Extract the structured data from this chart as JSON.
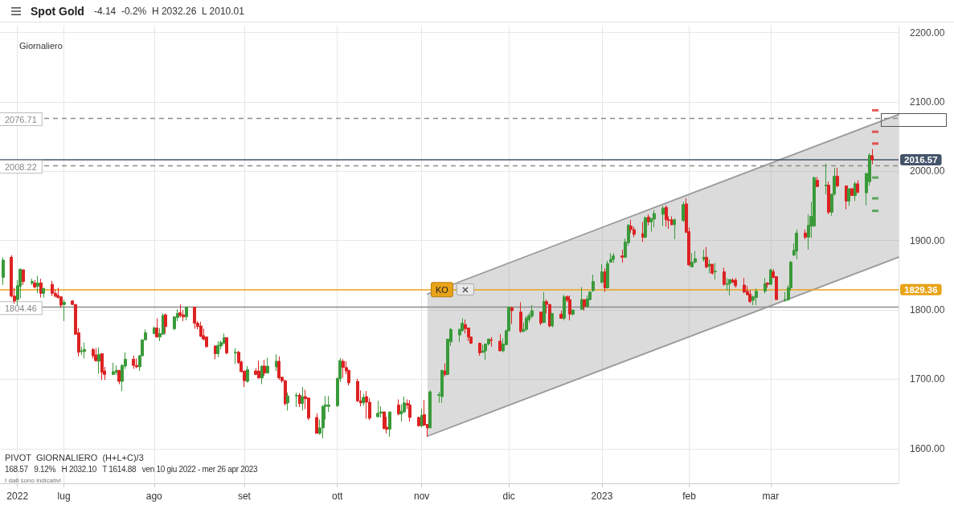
{
  "chart_data": {
    "type": "candlestick",
    "title": "Spot Gold",
    "subtitle": "-4.14  -0.2%  H 2032.26  L 2010.01",
    "annotations": [
      "Giornaliero",
      {
        "text": "KO",
        "x": "2022-11-08",
        "y": 1829.36
      },
      "PIVOT  GIORNALIERO  (H+L+C)/3",
      "168.57   9.12%   H 2032.10   T 1614.88   ven 10 giu 2022 - mer 26 apr 2023",
      "I dati sono indicativi"
    ],
    "colors": [
      "#3a9a3a",
      "#dd2222",
      "#dd2222",
      "#3a9a3a",
      "#3a9a3a",
      "#dd2222",
      "#3a9a3a",
      "#dd2222",
      "#3a9a3a",
      "#dd2222",
      "#3a9a3a",
      "#dd2222",
      "#dd2222",
      "#dd2222",
      "#dd2222",
      "#3a9a3a",
      "#dd2222",
      "#dd2222",
      "#dd2222",
      "#3a9a3a",
      "#3a9a3a",
      "#dd2222",
      "#dd2222",
      "#3a9a3a",
      "#dd2222",
      "#dd2222",
      "#3a9a3a",
      "#3a9a3a",
      "#dd2222",
      "#3a9a3a",
      "#3a9a3a",
      "#dd2222",
      "#dd2222",
      "#3a9a3a",
      "#3a9a3a",
      "#3a9a3a",
      "#3a9a3a",
      "#dd2222",
      "#3a9a3a",
      "#3a9a3a",
      "#dd2222",
      "#3a9a3a",
      "#3a9a3a",
      "#dd2222",
      "#dd2222",
      "#3a9a3a",
      "#dd2222",
      "#dd2222",
      "#dd2222",
      "#dd2222",
      "#dd2222",
      "#dd2222",
      "#3a9a3a",
      "#3a9a3a",
      "#3a9a3a",
      "#dd2222",
      "#3a9a3a",
      "#dd2222",
      "#dd2222",
      "#dd2222",
      "#3a9a3a",
      "#dd2222",
      "#dd2222",
      "#3a9a3a",
      "#dd2222",
      "#3a9a3a",
      "#3a9a3a",
      "#dd2222",
      "#dd2222",
      "#dd2222",
      "#3a9a3a",
      "#3a9a3a",
      "#dd2222",
      "#3a9a3a",
      "#dd2222",
      "#dd2222",
      "#dd2222",
      "#3a9a3a",
      "#3a9a3a",
      "#3a9a3a",
      "#3a9a3a",
      "#3a9a3a",
      "#3a9a3a",
      "#dd2222",
      "#dd2222",
      "#dd2222",
      "#dd2222",
      "#dd2222",
      "#3a9a3a",
      "#dd2222",
      "#dd2222",
      "#3a9a3a",
      "#3a9a3a",
      "#dd2222",
      "#dd2222",
      "#3a9a3a",
      "#dd2222",
      "#3a9a3a",
      "#3a9a3a",
      "#dd2222",
      "#dd2222",
      "#dd2222",
      "#3a9a3a",
      "#dd2222",
      "#dd2222",
      "#3a9a3a",
      "#3a9a3a",
      "#3a9a3a",
      "#dd2222",
      "#3a9a3a",
      "#3a9a3a",
      "#3a9a3a",
      "#3a9a3a",
      "#dd2222",
      "#dd2222",
      "#dd2222",
      "#dd2222",
      "#3a9a3a",
      "#3a9a3a",
      "#3a9a3a",
      "#dd2222",
      "#dd2222",
      "#3a9a3a",
      "#3a9a3a",
      "#3a9a3a",
      "#dd2222",
      "#dd2222",
      "#3a9a3a",
      "#3a9a3a",
      "#3a9a3a",
      "#3a9a3a",
      "#dd2222",
      "#3a9a3a",
      "#dd2222",
      "#dd2222",
      "#3a9a3a",
      "#dd2222",
      "#3a9a3a",
      "#dd2222",
      "#dd2222",
      "#3a9a3a",
      "#3a9a3a",
      "#dd2222",
      "#3a9a3a",
      "#3a9a3a",
      "#3a9a3a",
      "#3a9a3a",
      "#dd2222",
      "#3a9a3a",
      "#3a9a3a",
      "#3a9a3a",
      "#dd2222",
      "#3a9a3a",
      "#3a9a3a",
      "#dd2222",
      "#dd2222",
      "#dd2222",
      "#3a9a3a",
      "#dd2222",
      "#3a9a3a",
      "#3a9a3a",
      "#3a9a3a",
      "#dd2222",
      "#dd2222",
      "#dd2222",
      "#3a9a3a",
      "#3a9a3a",
      "#dd2222",
      "#dd2222",
      "#3a9a3a",
      "#3a9a3a",
      "#3a9a3a",
      "#dd2222",
      "#3a9a3a",
      "#dd2222",
      "#3a9a3a",
      "#dd2222",
      "#3a9a3a",
      "#3a9a3a",
      "#dd2222",
      "#dd2222",
      "#dd2222",
      "#dd2222",
      "#dd2222",
      "#3a9a3a",
      "#3a9a3a",
      "#3a9a3a",
      "#dd2222",
      "#3a9a3a",
      "#dd2222",
      "#dd2222",
      "#3a9a3a",
      "#3a9a3a",
      "#3a9a3a",
      "#3a9a3a",
      "#3a9a3a",
      "#dd2222",
      "#3a9a3a",
      "#3a9a3a",
      "#3a9a3a",
      "#dd2222",
      "#3a9a3a",
      "#dd2222",
      "#3a9a3a",
      "#3a9a3a",
      "#dd2222",
      "#dd2222",
      "#3a9a3a",
      "#dd2222",
      "#3a9a3a",
      "#dd2222",
      "#3a9a3a",
      "#3a9a3a",
      "#dd2222"
    ],
    "grid": true,
    "xlim": [
      "2022-06-09",
      "2023-04-14"
    ],
    "xticks": [
      {
        "value": "2022-06-15",
        "label": "2022"
      },
      {
        "value": "2022-07-01",
        "label": "lug"
      },
      {
        "value": "2022-08-01",
        "label": "ago"
      },
      {
        "value": "2022-09-01",
        "label": "set"
      },
      {
        "value": "2022-10-03",
        "label": "ott"
      },
      {
        "value": "2022-11-01",
        "label": "nov"
      },
      {
        "value": "2022-12-01",
        "label": "dic"
      },
      {
        "value": "2023-01-02",
        "label": "2023"
      },
      {
        "value": "2023-02-01",
        "label": "feb"
      },
      {
        "value": "2023-03-01",
        "label": "mar"
      }
    ],
    "ylim": [
      1550,
      2210
    ],
    "yticks": [
      {
        "value": 1600,
        "label": "1600.00"
      },
      {
        "value": 1700,
        "label": "1700.00"
      },
      {
        "value": 1800,
        "label": "1800.00"
      },
      {
        "value": 1900,
        "label": "1900.00"
      },
      {
        "value": 2000,
        "label": "2000.00"
      },
      {
        "value": 2100,
        "label": "2100.00"
      },
      {
        "value": 2200,
        "label": "2200.00"
      }
    ],
    "ref_lines": [
      {
        "axis": "y",
        "value": 2076.71,
        "label": "2076.71",
        "line_style": "dashed"
      },
      {
        "axis": "y",
        "value": 2008.22,
        "label": "2008.22",
        "line_style": "dashed"
      },
      {
        "axis": "y",
        "value": 1804.46,
        "label": "1804.46"
      },
      {
        "axis": "y",
        "value": 1829.36,
        "label": "1829.36",
        "color": "#e8a317"
      },
      {
        "axis": "y",
        "value": 2016.57,
        "label": "2016.57",
        "color": "#44546a"
      }
    ],
    "x": [
      "2022-06-10",
      "2022-06-13",
      "2022-06-14",
      "2022-06-15",
      "2022-06-16",
      "2022-06-17",
      "2022-06-20",
      "2022-06-21",
      "2022-06-22",
      "2022-06-23",
      "2022-06-24",
      "2022-06-27",
      "2022-06-28",
      "2022-06-29",
      "2022-06-30",
      "2022-07-01",
      "2022-07-04",
      "2022-07-05",
      "2022-07-06",
      "2022-07-07",
      "2022-07-08",
      "2022-07-11",
      "2022-07-12",
      "2022-07-13",
      "2022-07-14",
      "2022-07-15",
      "2022-07-18",
      "2022-07-19",
      "2022-07-20",
      "2022-07-21",
      "2022-07-22",
      "2022-07-25",
      "2022-07-26",
      "2022-07-27",
      "2022-07-28",
      "2022-07-29",
      "2022-08-01",
      "2022-08-02",
      "2022-08-03",
      "2022-08-04",
      "2022-08-05",
      "2022-08-08",
      "2022-08-09",
      "2022-08-10",
      "2022-08-11",
      "2022-08-12",
      "2022-08-15",
      "2022-08-16",
      "2022-08-17",
      "2022-08-18",
      "2022-08-19",
      "2022-08-22",
      "2022-08-23",
      "2022-08-24",
      "2022-08-25",
      "2022-08-26",
      "2022-08-29",
      "2022-08-30",
      "2022-08-31",
      "2022-09-01",
      "2022-09-02",
      "2022-09-05",
      "2022-09-06",
      "2022-09-07",
      "2022-09-08",
      "2022-09-09",
      "2022-09-12",
      "2022-09-13",
      "2022-09-14",
      "2022-09-15",
      "2022-09-16",
      "2022-09-19",
      "2022-09-20",
      "2022-09-21",
      "2022-09-22",
      "2022-09-23",
      "2022-09-26",
      "2022-09-27",
      "2022-09-28",
      "2022-09-29",
      "2022-09-30",
      "2022-10-03",
      "2022-10-04",
      "2022-10-05",
      "2022-10-06",
      "2022-10-07",
      "2022-10-10",
      "2022-10-11",
      "2022-10-12",
      "2022-10-13",
      "2022-10-14",
      "2022-10-17",
      "2022-10-18",
      "2022-10-19",
      "2022-10-20",
      "2022-10-21",
      "2022-10-24",
      "2022-10-25",
      "2022-10-26",
      "2022-10-27",
      "2022-10-28",
      "2022-10-31",
      "2022-11-01",
      "2022-11-02",
      "2022-11-03",
      "2022-11-04",
      "2022-11-07",
      "2022-11-08",
      "2022-11-09",
      "2022-11-10",
      "2022-11-11",
      "2022-11-14",
      "2022-11-15",
      "2022-11-16",
      "2022-11-17",
      "2022-11-18",
      "2022-11-21",
      "2022-11-22",
      "2022-11-23",
      "2022-11-24",
      "2022-11-25",
      "2022-11-28",
      "2022-11-29",
      "2022-11-30",
      "2022-12-01",
      "2022-12-02",
      "2022-12-05",
      "2022-12-06",
      "2022-12-07",
      "2022-12-08",
      "2022-12-09",
      "2022-12-12",
      "2022-12-13",
      "2022-12-14",
      "2022-12-15",
      "2022-12-16",
      "2022-12-19",
      "2022-12-20",
      "2022-12-21",
      "2022-12-22",
      "2022-12-23",
      "2022-12-26",
      "2022-12-27",
      "2022-12-28",
      "2022-12-29",
      "2022-12-30",
      "2023-01-02",
      "2023-01-03",
      "2023-01-04",
      "2023-01-05",
      "2023-01-06",
      "2023-01-09",
      "2023-01-10",
      "2023-01-11",
      "2023-01-12",
      "2023-01-13",
      "2023-01-16",
      "2023-01-17",
      "2023-01-18",
      "2023-01-19",
      "2023-01-20",
      "2023-01-23",
      "2023-01-24",
      "2023-01-25",
      "2023-01-26",
      "2023-01-27",
      "2023-01-30",
      "2023-01-31",
      "2023-02-01",
      "2023-02-02",
      "2023-02-03",
      "2023-02-06",
      "2023-02-07",
      "2023-02-08",
      "2023-02-09",
      "2023-02-10",
      "2023-02-13",
      "2023-02-14",
      "2023-02-15",
      "2023-02-16",
      "2023-02-17",
      "2023-02-20",
      "2023-02-21",
      "2023-02-22",
      "2023-02-23",
      "2023-02-24",
      "2023-02-27",
      "2023-02-28",
      "2023-03-01",
      "2023-03-02",
      "2023-03-03",
      "2023-03-06",
      "2023-03-07",
      "2023-03-08",
      "2023-03-09",
      "2023-03-10",
      "2023-03-13",
      "2023-03-14",
      "2023-03-15",
      "2023-03-16",
      "2023-03-17",
      "2023-03-20",
      "2023-03-21",
      "2023-03-22",
      "2023-03-23",
      "2023-03-24",
      "2023-03-27",
      "2023-03-28",
      "2023-03-29",
      "2023-03-30",
      "2023-03-31",
      "2023-04-03",
      "2023-04-04",
      "2023-04-05"
    ],
    "ohlc": [
      [
        1847,
        1876,
        1836,
        1872
      ],
      [
        1876,
        1879,
        1818,
        1820
      ],
      [
        1820,
        1832,
        1809,
        1813
      ],
      [
        1815,
        1843,
        1807,
        1835
      ],
      [
        1834,
        1859,
        1817,
        1859
      ],
      [
        1858,
        1858,
        1836,
        1841
      ],
      [
        1839,
        1845,
        1836,
        1841
      ],
      [
        1839,
        1843,
        1831,
        1833
      ],
      [
        1834,
        1849,
        1824,
        1839
      ],
      [
        1839,
        1845,
        1818,
        1824
      ],
      [
        1824,
        1832,
        1818,
        1831
      ],
      [
        1837,
        1842,
        1820,
        1824
      ],
      [
        1824,
        1830,
        1818,
        1820
      ],
      [
        1821,
        1832,
        1816,
        1818
      ],
      [
        1819,
        1820,
        1803,
        1807
      ],
      [
        1808,
        1815,
        1784,
        1811
      ],
      [
        1813,
        1814,
        1807,
        1808
      ],
      [
        1808,
        1808,
        1764,
        1765
      ],
      [
        1767,
        1774,
        1733,
        1739
      ],
      [
        1740,
        1747,
        1735,
        1741
      ],
      [
        1740,
        1753,
        1730,
        1743
      ],
      [
        1743,
        1745,
        1730,
        1734
      ],
      [
        1735,
        1745,
        1725,
        1727
      ],
      [
        1726,
        1746,
        1708,
        1736
      ],
      [
        1737,
        1737,
        1699,
        1710
      ],
      [
        1712,
        1718,
        1699,
        1707
      ],
      [
        1707,
        1724,
        1706,
        1711
      ],
      [
        1710,
        1720,
        1706,
        1713
      ],
      [
        1713,
        1713,
        1693,
        1697
      ],
      [
        1697,
        1722,
        1683,
        1720
      ],
      [
        1719,
        1739,
        1715,
        1729
      ],
      [
        1729,
        1734,
        1715,
        1720
      ],
      [
        1720,
        1730,
        1716,
        1718
      ],
      [
        1718,
        1735,
        1712,
        1734
      ],
      [
        1734,
        1757,
        1733,
        1757
      ],
      [
        1757,
        1772,
        1756,
        1767
      ],
      [
        1766,
        1776,
        1765,
        1774
      ],
      [
        1774,
        1788,
        1760,
        1761
      ],
      [
        1761,
        1774,
        1755,
        1766
      ],
      [
        1765,
        1795,
        1764,
        1792
      ],
      [
        1793,
        1795,
        1766,
        1776
      ],
      [
        1773,
        1791,
        1771,
        1790
      ],
      [
        1789,
        1801,
        1784,
        1795
      ],
      [
        1796,
        1808,
        1789,
        1792
      ],
      [
        1793,
        1800,
        1784,
        1790
      ],
      [
        1790,
        1805,
        1785,
        1804
      ],
      [
        1804,
        1804,
        1773,
        1781
      ],
      [
        1781,
        1784,
        1772,
        1776
      ],
      [
        1777,
        1783,
        1761,
        1762
      ],
      [
        1763,
        1773,
        1756,
        1758
      ],
      [
        1761,
        1761,
        1746,
        1747
      ],
      [
        1748,
        1749,
        1729,
        1737
      ],
      [
        1737,
        1755,
        1732,
        1749
      ],
      [
        1748,
        1756,
        1743,
        1753
      ],
      [
        1752,
        1766,
        1750,
        1760
      ],
      [
        1760,
        1760,
        1736,
        1738
      ],
      [
        1738,
        1745,
        1722,
        1739
      ],
      [
        1739,
        1741,
        1722,
        1724
      ],
      [
        1725,
        1727,
        1710,
        1711
      ],
      [
        1712,
        1712,
        1689,
        1698
      ],
      [
        1697,
        1719,
        1695,
        1714
      ],
      [
        1712,
        1716,
        1706,
        1707
      ],
      [
        1712,
        1727,
        1701,
        1702
      ],
      [
        1702,
        1720,
        1693,
        1719
      ],
      [
        1719,
        1728,
        1705,
        1709
      ],
      [
        1709,
        1731,
        1709,
        1719
      ],
      [
        1718,
        1736,
        1712,
        1726
      ],
      [
        1726,
        1733,
        1699,
        1702
      ],
      [
        1703,
        1703,
        1695,
        1698
      ],
      [
        1698,
        1699,
        1662,
        1665
      ],
      [
        1666,
        1681,
        1655,
        1676
      ],
      [
        1676,
        1681,
        1660,
        1677
      ],
      [
        1677,
        1680,
        1660,
        1665
      ],
      [
        1665,
        1689,
        1655,
        1675
      ],
      [
        1675,
        1685,
        1657,
        1672
      ],
      [
        1673,
        1673,
        1641,
        1644
      ],
      [
        1645,
        1651,
        1622,
        1622
      ],
      [
        1622,
        1642,
        1620,
        1630
      ],
      [
        1630,
        1663,
        1615,
        1661
      ],
      [
        1661,
        1676,
        1642,
        1663
      ],
      [
        1661,
        1676,
        1653,
        1663
      ],
      [
        1662,
        1703,
        1660,
        1701
      ],
      [
        1701,
        1731,
        1696,
        1727
      ],
      [
        1726,
        1729,
        1702,
        1717
      ],
      [
        1717,
        1726,
        1707,
        1712
      ],
      [
        1713,
        1713,
        1691,
        1695
      ],
      [
        1697,
        1701,
        1667,
        1669
      ],
      [
        1669,
        1684,
        1661,
        1666
      ],
      [
        1666,
        1679,
        1662,
        1674
      ],
      [
        1675,
        1683,
        1643,
        1667
      ],
      [
        1667,
        1673,
        1641,
        1644
      ],
      [
        1646,
        1669,
        1645,
        1651
      ],
      [
        1651,
        1661,
        1645,
        1653
      ],
      [
        1653,
        1653,
        1628,
        1629
      ],
      [
        1631,
        1646,
        1622,
        1628
      ],
      [
        1628,
        1653,
        1617,
        1653
      ],
      [
        1663,
        1671,
        1648,
        1650
      ],
      [
        1650,
        1664,
        1639,
        1654
      ],
      [
        1653,
        1675,
        1651,
        1666
      ],
      [
        1665,
        1671,
        1657,
        1663
      ],
      [
        1663,
        1670,
        1639,
        1645
      ],
      [
        1645,
        1646,
        1632,
        1633
      ],
      [
        1633,
        1658,
        1631,
        1648
      ],
      [
        1649,
        1670,
        1633,
        1634
      ],
      [
        1635,
        1635,
        1617,
        1630
      ],
      [
        1630,
        1684,
        1630,
        1682
      ],
      [
        1677,
        1682,
        1666,
        1678
      ],
      [
        1675,
        1713,
        1666,
        1713
      ],
      [
        1712,
        1723,
        1704,
        1707
      ],
      [
        1707,
        1758,
        1706,
        1758
      ],
      [
        1754,
        1774,
        1748,
        1772
      ],
      [
        1764,
        1773,
        1754,
        1772
      ],
      [
        1770,
        1788,
        1769,
        1781
      ],
      [
        1779,
        1786,
        1766,
        1773
      ],
      [
        1774,
        1774,
        1755,
        1761
      ],
      [
        1761,
        1761,
        1751,
        1752
      ],
      [
        1752,
        1753,
        1734,
        1738
      ],
      [
        1739,
        1750,
        1738,
        1741
      ],
      [
        1741,
        1751,
        1728,
        1751
      ],
      [
        1751,
        1759,
        1749,
        1758
      ],
      [
        1757,
        1761,
        1747,
        1756
      ],
      [
        1755,
        1765,
        1741,
        1741
      ],
      [
        1741,
        1759,
        1739,
        1751
      ],
      [
        1750,
        1772,
        1749,
        1770
      ],
      [
        1770,
        1805,
        1769,
        1804
      ],
      [
        1803,
        1805,
        1780,
        1799
      ],
      [
        1797,
        1811,
        1767,
        1769
      ],
      [
        1769,
        1782,
        1768,
        1772
      ],
      [
        1772,
        1791,
        1769,
        1788
      ],
      [
        1786,
        1796,
        1782,
        1792
      ],
      [
        1791,
        1807,
        1788,
        1799
      ],
      [
        1797,
        1797,
        1778,
        1781
      ],
      [
        1782,
        1826,
        1781,
        1812
      ],
      [
        1812,
        1815,
        1795,
        1808
      ],
      [
        1808,
        1808,
        1775,
        1777
      ],
      [
        1777,
        1795,
        1775,
        1795
      ],
      [
        1794,
        1799,
        1787,
        1788
      ],
      [
        1788,
        1822,
        1785,
        1819
      ],
      [
        1819,
        1821,
        1811,
        1814
      ],
      [
        1815,
        1821,
        1785,
        1794
      ],
      [
        1794,
        1800,
        1792,
        1800
      ],
      [
        1801,
        1833,
        1800,
        1815
      ],
      [
        1815,
        1815,
        1799,
        1805
      ],
      [
        1805,
        1821,
        1804,
        1816
      ],
      [
        1815,
        1826,
        1814,
        1826
      ],
      [
        1828,
        1851,
        1826,
        1841
      ],
      [
        1840,
        1866,
        1838,
        1855
      ],
      [
        1855,
        1860,
        1826,
        1832
      ],
      [
        1832,
        1871,
        1831,
        1867
      ],
      [
        1869,
        1882,
        1868,
        1873
      ],
      [
        1873,
        1882,
        1868,
        1878
      ],
      [
        1878,
        1887,
        1868,
        1876
      ],
      [
        1876,
        1903,
        1875,
        1898
      ],
      [
        1897,
        1924,
        1893,
        1922
      ],
      [
        1921,
        1930,
        1911,
        1916
      ],
      [
        1916,
        1920,
        1905,
        1909
      ],
      [
        1910,
        1927,
        1898,
        1905
      ],
      [
        1905,
        1935,
        1903,
        1933
      ],
      [
        1934,
        1938,
        1922,
        1927
      ],
      [
        1927,
        1932,
        1913,
        1932
      ],
      [
        1931,
        1944,
        1919,
        1939
      ],
      [
        1938,
        1950,
        1921,
        1947
      ],
      [
        1948,
        1951,
        1920,
        1930
      ],
      [
        1930,
        1935,
        1917,
        1929
      ],
      [
        1930,
        1935,
        1922,
        1923
      ],
      [
        1923,
        1932,
        1902,
        1930
      ],
      [
        1929,
        1956,
        1927,
        1952
      ],
      [
        1953,
        1961,
        1912,
        1912
      ],
      [
        1913,
        1919,
        1863,
        1865
      ],
      [
        1862,
        1882,
        1862,
        1869
      ],
      [
        1869,
        1885,
        1867,
        1874
      ],
      [
        1873,
        1887,
        1870,
        1876
      ],
      [
        1876,
        1891,
        1860,
        1862
      ],
      [
        1863,
        1873,
        1853,
        1866
      ],
      [
        1866,
        1866,
        1851,
        1853
      ],
      [
        1855,
        1868,
        1844,
        1856
      ],
      [
        1855,
        1861,
        1835,
        1837
      ],
      [
        1837,
        1846,
        1828,
        1838
      ],
      [
        1838,
        1844,
        1821,
        1844
      ],
      [
        1843,
        1846,
        1839,
        1840
      ],
      [
        1843,
        1846,
        1832,
        1835
      ],
      [
        1836,
        1846,
        1824,
        1826
      ],
      [
        1827,
        1835,
        1821,
        1822
      ],
      [
        1823,
        1829,
        1810,
        1812
      ],
      [
        1814,
        1821,
        1807,
        1819
      ],
      [
        1818,
        1831,
        1807,
        1827
      ],
      [
        1827,
        1846,
        1824,
        1838
      ],
      [
        1839,
        1840,
        1832,
        1837
      ],
      [
        1837,
        1859,
        1836,
        1858
      ],
      [
        1855,
        1859,
        1846,
        1847
      ],
      [
        1848,
        1848,
        1815,
        1815
      ],
      [
        1814,
        1826,
        1812,
        1815
      ],
      [
        1815,
        1836,
        1813,
        1832
      ],
      [
        1832,
        1871,
        1828,
        1869
      ],
      [
        1879,
        1896,
        1878,
        1886
      ],
      [
        1885,
        1916,
        1873,
        1911
      ],
      [
        1911,
        1916,
        1902,
        1905
      ],
      [
        1905,
        1938,
        1887,
        1922
      ],
      [
        1921,
        1956,
        1904,
        1935
      ],
      [
        1921,
        1992,
        1920,
        1991
      ],
      [
        1987,
        1992,
        1977,
        1978
      ],
      [
        1979,
        2011,
        1967,
        1980
      ],
      [
        1980,
        1985,
        1938,
        1941
      ],
      [
        1941,
        1967,
        1936,
        1967
      ],
      [
        1967,
        2005,
        1965,
        1993
      ],
      [
        1993,
        2005,
        1977,
        1979
      ],
      [
        1979,
        1979,
        1945,
        1957
      ],
      [
        1957,
        1975,
        1950,
        1975
      ],
      [
        1975,
        1975,
        1965,
        1965
      ],
      [
        1965,
        1985,
        1957,
        1982
      ],
      [
        1982,
        1987,
        1968,
        1970
      ],
      [
        1969,
        1997,
        1951,
        1997
      ],
      [
        1985,
        2026,
        1979,
        2023
      ],
      [
        2022.5,
        2032.26,
        2010.01,
        2016.57
      ]
    ],
    "series": [
      {
        "type": "line",
        "color": "#999999",
        "x": [
          "2022-11-03",
          "2023-04-14"
        ],
        "values": [
          1823,
          2082
        ],
        "lower": [
          1618,
          1876
        ],
        "upper": [
          1823,
          2082
        ]
      },
      {
        "type": "line",
        "color": "#999999",
        "x": [
          "2022-11-03",
          "2023-04-14"
        ],
        "values": [
          1618,
          1876
        ]
      },
      {
        "type": "scatter",
        "marker": "square",
        "color": "#e03030",
        "x": [
          "2023-04-06",
          "2023-04-06",
          "2023-04-06"
        ],
        "values": [
          2088,
          2057,
          2040
        ]
      },
      {
        "type": "scatter",
        "marker": "square",
        "color": "#3a9a3a",
        "x": [
          "2023-04-06",
          "2023-04-06",
          "2023-04-06"
        ],
        "values": [
          1991,
          1961,
          1943
        ]
      }
    ]
  }
}
